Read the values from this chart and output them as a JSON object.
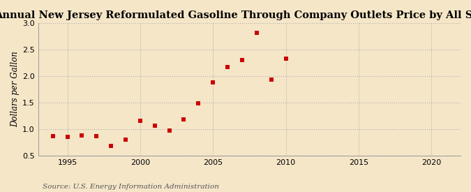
{
  "title": "Annual New Jersey Reformulated Gasoline Through Company Outlets Price by All Sellers",
  "ylabel": "Dollars per Gallon",
  "source": "Source: U.S. Energy Information Administration",
  "background_color": "#f5e6c8",
  "xlim": [
    1993,
    2022
  ],
  "ylim": [
    0.5,
    3.0
  ],
  "xticks": [
    1995,
    2000,
    2005,
    2010,
    2015,
    2020
  ],
  "yticks": [
    0.5,
    1.0,
    1.5,
    2.0,
    2.5,
    3.0
  ],
  "x": [
    1994,
    1995,
    1996,
    1997,
    1998,
    1999,
    2000,
    2001,
    2002,
    2003,
    2004,
    2005,
    2006,
    2007,
    2008,
    2009,
    2010
  ],
  "y": [
    0.87,
    0.86,
    0.88,
    0.87,
    0.69,
    0.81,
    1.16,
    1.07,
    0.97,
    1.19,
    1.49,
    1.88,
    2.17,
    2.3,
    2.82,
    1.93,
    2.33
  ],
  "marker_color": "#cc0000",
  "marker_size": 5,
  "grid_color": "#aaaaaa",
  "title_fontsize": 10.5,
  "label_fontsize": 8.5,
  "tick_fontsize": 8,
  "source_fontsize": 7.5
}
